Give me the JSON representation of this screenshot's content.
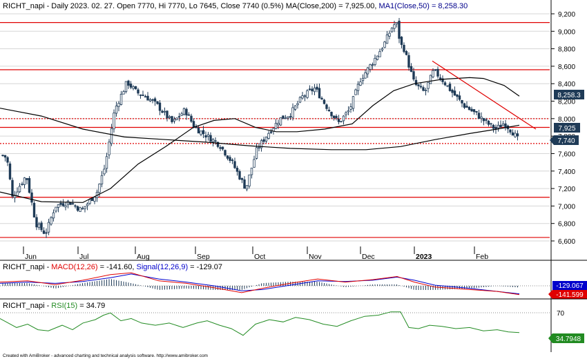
{
  "panes": {
    "price": {
      "header": {
        "prefix": "RICHT_napi - Daily 2023. 02. 27. Open 7770, Hi 7770, Lo 7645, Close 7740 (0.5%) MA(Close,200) = 7,925.00, ",
        "ma_text": "MA1(Close,50) = 8,258.30"
      },
      "ticks": [
        "9,200",
        "9,000",
        "8,800",
        "8,600",
        "8,400",
        "8,200",
        "8,000",
        "7,800",
        "7,600",
        "7,400",
        "7,200",
        "7,000",
        "6,800",
        "6,600"
      ],
      "badges": {
        "ma50": "8,258.3",
        "ma200": "7,925",
        "close": "7,740"
      }
    },
    "macd": {
      "header": {
        "prefix": "RICHT_napi - ",
        "macd_text": "MACD(12,26)",
        "macd_value": " = -141.60, ",
        "signal_text": "Signal(12,26,9)",
        "signal_value": " = -129.07"
      },
      "badges": {
        "signal": "-129.067",
        "macd": "-141.599"
      }
    },
    "rsi": {
      "header": {
        "prefix": "RICHT_napi - ",
        "rsi_text": "RSI(15)",
        "rsi_value": " = 34.79"
      },
      "ticks": [
        "70"
      ],
      "badges": {
        "rsi": "34.7948"
      }
    }
  },
  "x_axis": {
    "labels": [
      "Jun",
      "Jul",
      "Aug",
      "Sep",
      "Oct",
      "Nov",
      "Dec",
      "2023",
      "Feb"
    ]
  },
  "footer": {
    "credit": "Created with AmiBroker - advanced charting and technical analysis software. http://www.amibroker.com"
  },
  "colors": {
    "candle_up": "#ffffff",
    "candle_down": "#1f3b57",
    "ma50": "#00008b",
    "ma200": "#000000",
    "level_lines": "#e00000",
    "trendline": "#e00000",
    "macd_line": "#e00000",
    "signal_line": "#0000cc",
    "histogram": "#1f3b57",
    "rsi_line": "#228b22",
    "badge_ma50": "#1f3b57",
    "badge_ma200": "#1f3b57",
    "badge_close": "#1f3b57",
    "badge_signal": "#0000cc",
    "badge_macd": "#e00000",
    "badge_rsi": "#228b22"
  },
  "chart_data": [
    {
      "type": "candlestick",
      "ylim": [
        6550,
        9300
      ],
      "x": [
        "Jun",
        "Jul",
        "Aug",
        "Sep",
        "Oct",
        "Nov",
        "Dec",
        "2023",
        "Feb"
      ],
      "last_bar": {
        "date": "2023. 02. 27.",
        "open": 7770,
        "high": 7770,
        "low": 7645,
        "close": 7740,
        "change_pct": 0.5
      },
      "moving_averages": [
        {
          "name": "MA(Close,200)",
          "last": 7925.0
        },
        {
          "name": "MA1(Close,50)",
          "last": 8258.3
        }
      ],
      "horizontal_levels": [
        {
          "value": 9100,
          "style": "solid"
        },
        {
          "value": 8560,
          "style": "solid"
        },
        {
          "value": 8000,
          "style": "dotted"
        },
        {
          "value": 7900,
          "style": "solid"
        },
        {
          "value": 7715,
          "style": "dotted"
        },
        {
          "value": 7100,
          "style": "solid"
        },
        {
          "value": 6640,
          "style": "solid"
        }
      ],
      "trendline": [
        [
          8660,
          7880
        ]
      ],
      "grid": true
    },
    {
      "type": "line",
      "series": [
        {
          "name": "MACD(12,26)",
          "last": -141.6
        },
        {
          "name": "Signal(12,26,9)",
          "last": -129.07
        }
      ]
    },
    {
      "type": "line",
      "ylim": [
        0,
        100
      ],
      "series": [
        {
          "name": "RSI(15)",
          "last": 34.79
        }
      ]
    }
  ]
}
